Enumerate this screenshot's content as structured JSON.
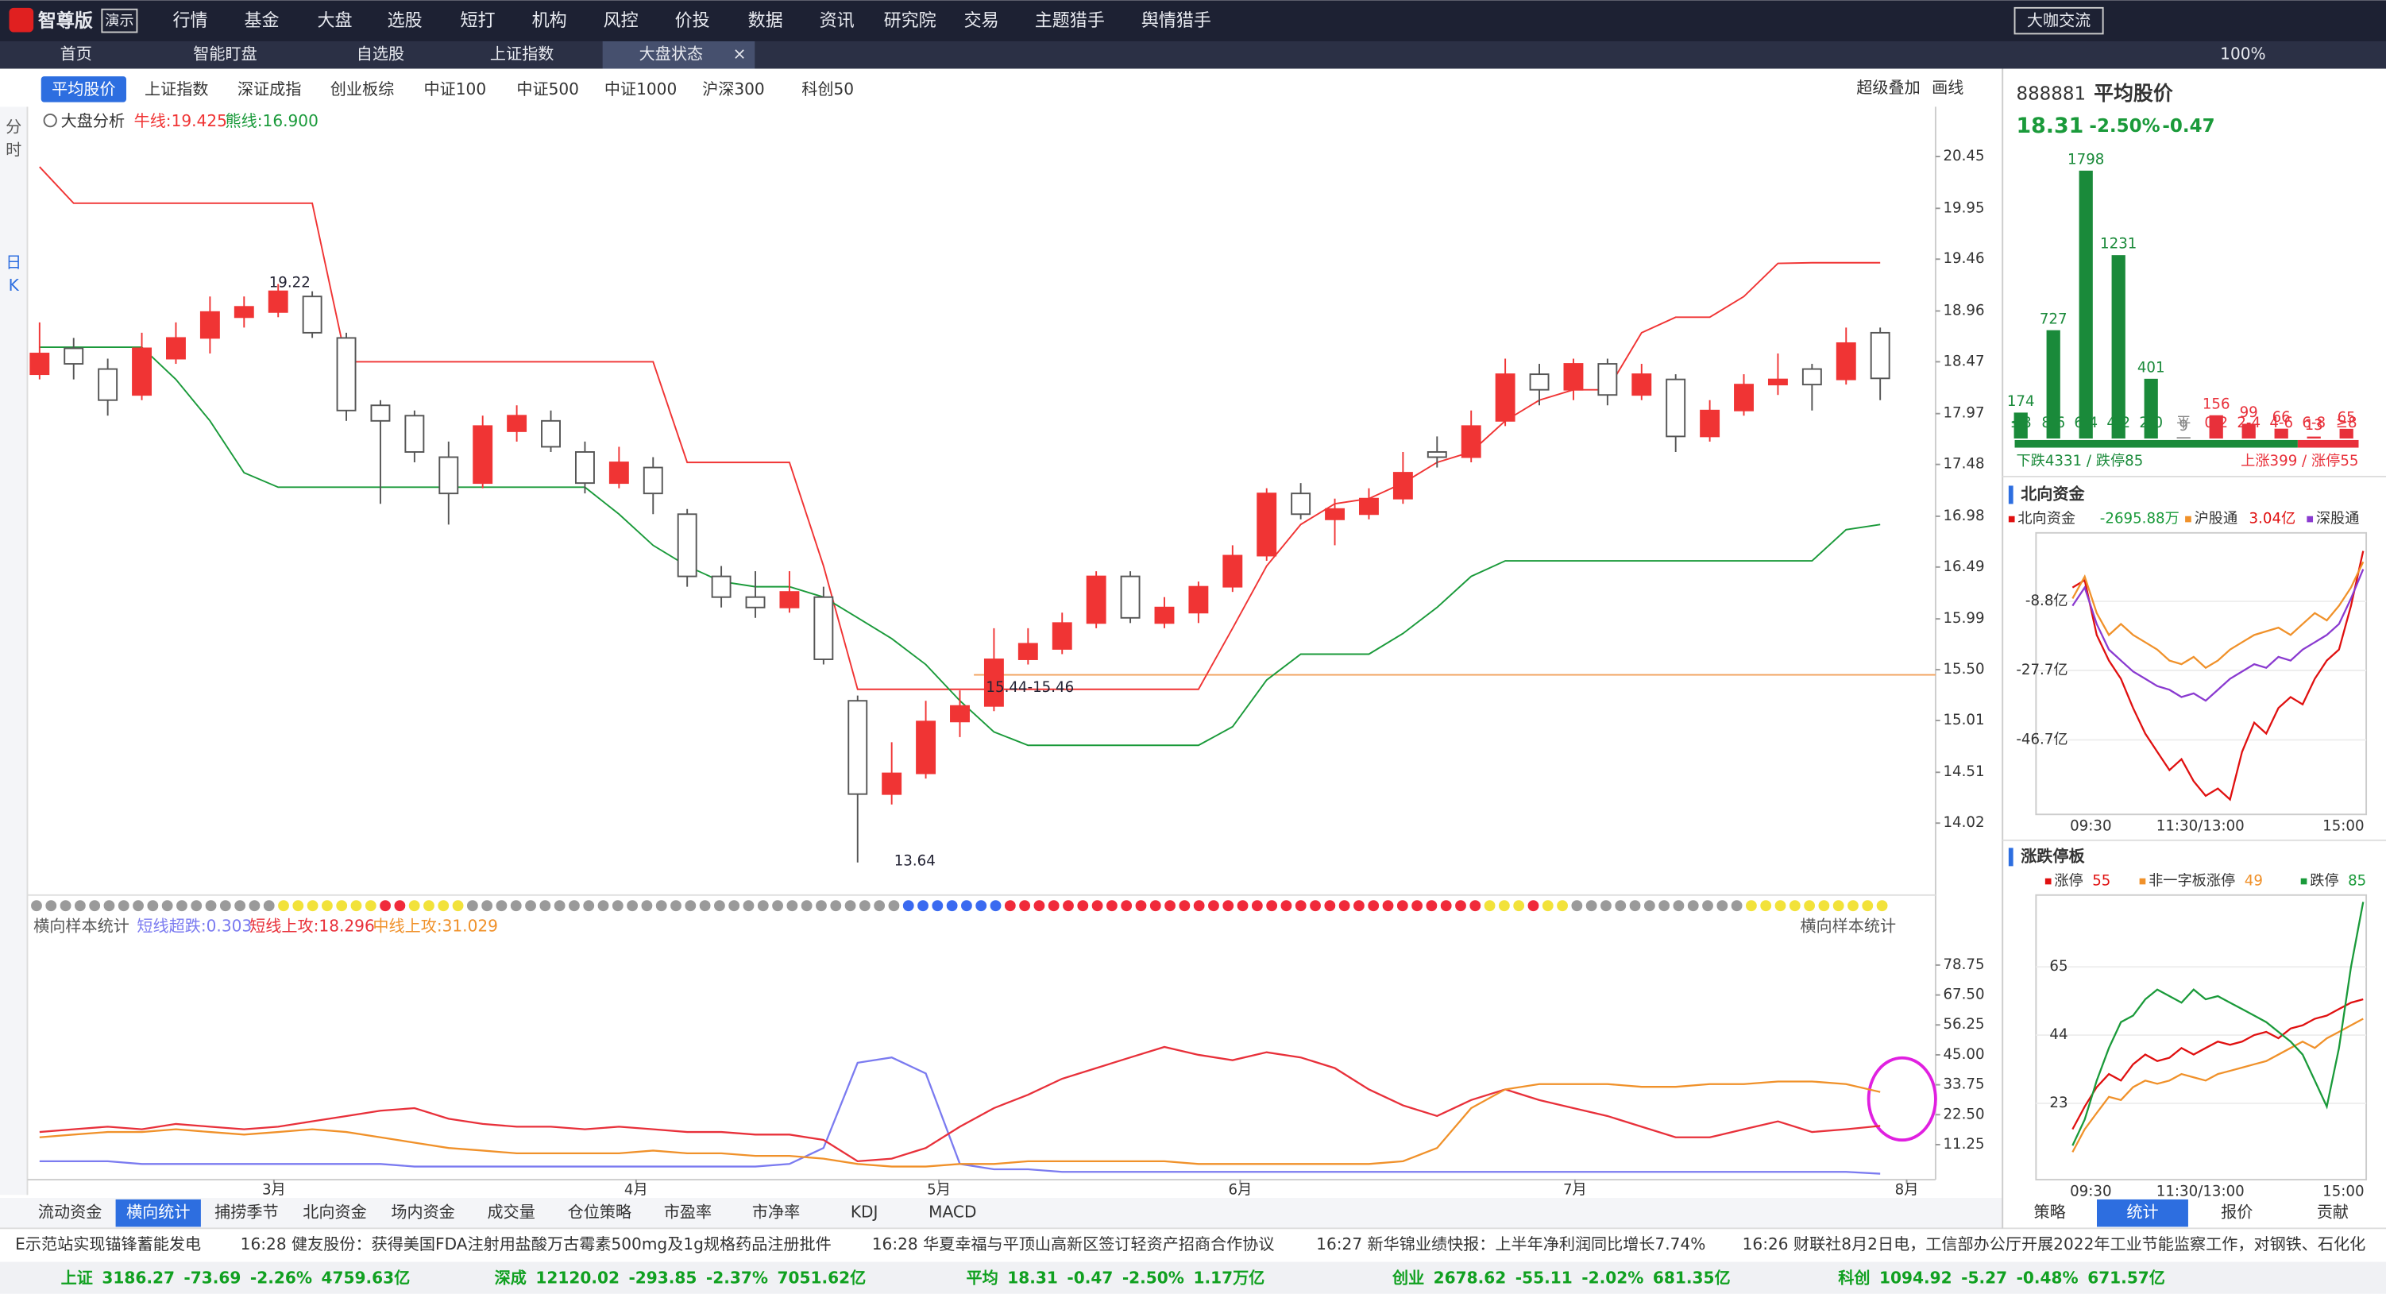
{
  "ui": {
    "logo": "智尊版",
    "logo_badge": "演示",
    "menu": [
      "行情",
      "基金",
      "大盘",
      "选股",
      "短打",
      "机构",
      "风控",
      "价投",
      "数据",
      "资讯",
      "研究院",
      "交易",
      "主题猎手",
      "舆情猎手"
    ],
    "top_right": "大咖交流",
    "zoom": "100%",
    "tabs": [
      "首页",
      "智能盯盘",
      "自选股",
      "上证指数",
      "大盘状态"
    ],
    "index_tabs": [
      "平均股价",
      "上证指数",
      "深证成指",
      "创业板综",
      "中证100",
      "中证500",
      "中证1000",
      "沪深300",
      "科创50"
    ],
    "overlay": "超级叠加",
    "draw_tool": "画线",
    "side": [
      "分",
      "时",
      "日",
      "K"
    ],
    "analysis": "大盘分析",
    "bull": "牛线:19.425",
    "bear": "熊线:16.900",
    "lower_title": "横向样本统计",
    "lower_right": "横向样本统计",
    "bottom_tabs": [
      "流动资金",
      "横向统计",
      "捕捞季节",
      "北向资金",
      "场内资金",
      "成交量",
      "仓位策略",
      "市盈率",
      "市净率",
      "KDJ",
      "MACD"
    ],
    "news": [
      "E示范站实现锚锋蓄能发电",
      "16:28 健友股份：获得美国FDA注射用盐酸万古霉素500mg及1g规格药品注册批件",
      "16:28 华夏幸福与平顶山高新区签订轻资产招商合作协议",
      "16:27 新华锦业绩快报：上半年净利润同比增长7.74%",
      "16:26 财联社8月2日电，工信部办公厅开展2022年工业节能监察工作，对钢铁、石化化"
    ],
    "status": [
      [
        "上证",
        "3186.27",
        "-73.69",
        "-2.26%",
        "4759.63亿"
      ],
      [
        "深成",
        "12120.02",
        "-293.85",
        "-2.37%",
        "7051.62亿"
      ],
      [
        "平均",
        "18.31",
        "-0.47",
        "-2.50%",
        "1.17万亿"
      ],
      [
        "创业",
        "2678.62",
        "-55.11",
        "-2.02%",
        "681.35亿"
      ],
      [
        "科创",
        "1094.92",
        "-5.27",
        "-0.48%",
        "671.57亿"
      ]
    ],
    "month_labels": [
      "3月",
      "4月",
      "5月",
      "6月",
      "7月",
      "8月"
    ],
    "annotations": [
      "19.22",
      "13.64",
      "15.44-15.46"
    ],
    "stock_code": "888881",
    "stock_name": "平均股价",
    "price": "18.31",
    "pct": "-2.50%",
    "chg": "-0.47",
    "fall": "下跌4331 / 跌停85",
    "rise": "上涨399 / 涨停55",
    "north_title": "北向资金",
    "north_values": [
      "-2695.88万",
      "3.04亿"
    ],
    "limit_title": "涨跌停板",
    "time_labels": [
      "09:30",
      "11:30/13:00",
      "15:00"
    ],
    "right_tabs": [
      "策略",
      "统计",
      "报价",
      "贡献"
    ]
  },
  "chart_data": [
    {
      "type": "candlestick",
      "ylim": [
        13.37,
        20.93
      ],
      "yticks": [
        20.45,
        19.95,
        19.46,
        18.96,
        18.47,
        17.97,
        17.48,
        16.98,
        16.49,
        15.99,
        {
          "value": 15.5,
          "label": "15.50"
        },
        15.01,
        14.51,
        14.02
      ],
      "up_color": "#f03434",
      "down_color": "#555555",
      "support_line": 15.45,
      "support_color": "#f2a25c",
      "candles": [
        [
          18.35,
          18.85,
          18.3,
          18.55
        ],
        [
          18.6,
          18.7,
          18.3,
          18.45
        ],
        [
          18.4,
          18.5,
          17.95,
          18.1
        ],
        [
          18.15,
          18.75,
          18.1,
          18.6
        ],
        [
          18.5,
          18.85,
          18.45,
          18.7
        ],
        [
          18.7,
          19.1,
          18.55,
          18.95
        ],
        [
          18.9,
          19.1,
          18.8,
          19.0
        ],
        [
          18.95,
          19.22,
          18.9,
          19.15
        ],
        [
          19.1,
          19.15,
          18.7,
          18.75
        ],
        [
          18.7,
          18.75,
          17.9,
          18.0
        ],
        [
          18.05,
          18.1,
          17.1,
          17.9
        ],
        [
          17.95,
          18.0,
          17.5,
          17.6
        ],
        [
          17.55,
          17.7,
          16.9,
          17.2
        ],
        [
          17.3,
          17.95,
          17.25,
          17.85
        ],
        [
          17.8,
          18.05,
          17.7,
          17.95
        ],
        [
          17.9,
          18.0,
          17.6,
          17.65
        ],
        [
          17.6,
          17.7,
          17.2,
          17.3
        ],
        [
          17.3,
          17.65,
          17.25,
          17.5
        ],
        [
          17.45,
          17.55,
          17.0,
          17.2
        ],
        [
          17.0,
          17.05,
          16.3,
          16.4
        ],
        [
          16.4,
          16.5,
          16.1,
          16.2
        ],
        [
          16.2,
          16.45,
          16.0,
          16.1
        ],
        [
          16.1,
          16.45,
          16.05,
          16.25
        ],
        [
          16.2,
          16.3,
          15.55,
          15.6
        ],
        [
          15.2,
          15.25,
          13.64,
          14.3
        ],
        [
          14.3,
          14.8,
          14.2,
          14.5
        ],
        [
          14.5,
          15.2,
          14.45,
          15.0
        ],
        [
          15.0,
          15.3,
          14.85,
          15.15
        ],
        [
          15.15,
          15.9,
          15.1,
          15.6
        ],
        [
          15.6,
          15.9,
          15.55,
          15.75
        ],
        [
          15.7,
          16.05,
          15.65,
          15.95
        ],
        [
          15.95,
          16.45,
          15.9,
          16.4
        ],
        [
          16.4,
          16.45,
          15.95,
          16.0
        ],
        [
          15.95,
          16.2,
          15.9,
          16.1
        ],
        [
          16.05,
          16.35,
          15.95,
          16.3
        ],
        [
          16.3,
          16.7,
          16.25,
          16.6
        ],
        [
          16.6,
          17.25,
          16.55,
          17.2
        ],
        [
          17.2,
          17.3,
          16.95,
          17.0
        ],
        [
          16.95,
          17.15,
          16.7,
          17.05
        ],
        [
          17.0,
          17.25,
          16.95,
          17.15
        ],
        [
          17.15,
          17.6,
          17.1,
          17.4
        ],
        [
          17.6,
          17.75,
          17.45,
          17.55
        ],
        [
          17.55,
          18.0,
          17.5,
          17.85
        ],
        [
          17.9,
          18.5,
          17.85,
          18.35
        ],
        [
          18.35,
          18.45,
          18.05,
          18.2
        ],
        [
          18.2,
          18.5,
          18.1,
          18.45
        ],
        [
          18.45,
          18.5,
          18.05,
          18.15
        ],
        [
          18.15,
          18.45,
          18.1,
          18.35
        ],
        [
          18.3,
          18.35,
          17.6,
          17.75
        ],
        [
          17.75,
          18.1,
          17.7,
          18.0
        ],
        [
          18.0,
          18.35,
          17.95,
          18.25
        ],
        [
          18.25,
          18.55,
          18.15,
          18.3
        ],
        [
          18.4,
          18.45,
          18.0,
          18.25
        ],
        [
          18.3,
          18.8,
          18.25,
          18.65
        ],
        [
          18.75,
          18.8,
          18.1,
          18.31
        ]
      ],
      "series": [
        {
          "name": "牛线",
          "color": "#f03434",
          "values": [
            20.35,
            20.0,
            20.0,
            20.0,
            20.0,
            20.0,
            20.0,
            20.0,
            20.0,
            18.47,
            18.47,
            18.47,
            18.47,
            18.47,
            18.47,
            18.47,
            18.47,
            18.47,
            18.47,
            17.5,
            17.5,
            17.5,
            17.5,
            16.5,
            15.31,
            15.31,
            15.31,
            15.31,
            15.31,
            15.31,
            15.31,
            15.31,
            15.31,
            15.31,
            15.31,
            15.9,
            16.5,
            16.9,
            17.1,
            17.15,
            17.3,
            17.5,
            17.6,
            17.9,
            18.1,
            18.2,
            18.2,
            18.75,
            18.9,
            18.9,
            19.1,
            19.42,
            19.425,
            19.425,
            19.425
          ]
        },
        {
          "name": "熊线",
          "color": "#1a9a3a",
          "values": [
            18.61,
            18.61,
            18.61,
            18.61,
            18.3,
            17.9,
            17.4,
            17.26,
            17.26,
            17.26,
            17.26,
            17.26,
            17.26,
            17.26,
            17.26,
            17.26,
            17.26,
            17.0,
            16.7,
            16.5,
            16.35,
            16.3,
            16.3,
            16.2,
            16.0,
            15.8,
            15.55,
            15.2,
            14.9,
            14.77,
            14.77,
            14.77,
            14.77,
            14.77,
            14.77,
            14.95,
            15.4,
            15.65,
            15.65,
            15.65,
            15.85,
            16.1,
            16.4,
            16.55,
            16.55,
            16.55,
            16.55,
            16.55,
            16.55,
            16.55,
            16.55,
            16.55,
            16.55,
            16.85,
            16.9
          ]
        }
      ]
    },
    {
      "type": "line",
      "ylim": [
        -1.91,
        86.76
      ],
      "yticks": [
        78.75,
        {
          "value": 67.5,
          "label": "67.50"
        },
        56.25,
        {
          "value": 45,
          "label": "45.00"
        },
        33.75,
        {
          "value": 22.5,
          "label": "22.50"
        },
        11.25
      ],
      "series": [
        {
          "name": "短线超跌:0.303",
          "color": "#7b7bf0",
          "values": [
            5,
            5,
            5,
            4,
            4,
            4,
            4,
            4,
            4,
            4,
            4,
            3,
            3,
            3,
            3,
            3,
            3,
            3,
            3,
            3,
            3,
            3,
            4,
            10,
            42,
            44,
            38,
            4,
            2,
            2,
            1,
            1,
            1,
            1,
            1,
            1,
            1,
            1,
            1,
            1,
            1,
            1,
            1,
            1,
            1,
            1,
            1,
            1,
            1,
            1,
            1,
            1,
            1,
            1,
            0.303
          ]
        },
        {
          "name": "短线上攻:18.296",
          "color": "#e8303a",
          "values": [
            16,
            17,
            18,
            17,
            19,
            18,
            17,
            18,
            20,
            22,
            24,
            25,
            21,
            19,
            18,
            18,
            17,
            18,
            17,
            16,
            16,
            15,
            15,
            13,
            5,
            6,
            10,
            18,
            25,
            30,
            36,
            40,
            44,
            48,
            45,
            43,
            46,
            44,
            40,
            32,
            26,
            22,
            28,
            32,
            28,
            25,
            22,
            18,
            14,
            14,
            17,
            20,
            16,
            17,
            18.296
          ]
        },
        {
          "name": "中线上攻:31.029",
          "color": "#f0912a",
          "values": [
            14,
            15,
            16,
            16,
            17,
            16,
            15,
            16,
            17,
            16,
            14,
            12,
            10,
            9,
            8,
            8,
            8,
            8,
            9,
            8,
            8,
            7,
            7,
            6,
            4,
            3,
            3,
            4,
            4,
            5,
            5,
            5,
            5,
            5,
            4,
            4,
            4,
            4,
            4,
            4,
            5,
            10,
            25,
            32,
            34,
            34,
            34,
            33,
            33,
            34,
            34,
            35,
            35,
            34,
            31.029
          ]
        }
      ]
    },
    {
      "type": "bar",
      "ylim": [
        0,
        1900
      ],
      "categories": [
        "≤8",
        "8-6",
        "6-4",
        "4-2",
        "2-0",
        "平",
        "0-2",
        "2-4",
        "4-6",
        "6-8",
        "≥8"
      ],
      "values": [
        174,
        727,
        1798,
        1231,
        401,
        9,
        156,
        99,
        66,
        13,
        65
      ],
      "colors": [
        "#1a8a3a",
        "#1a8a3a",
        "#1a8a3a",
        "#1a8a3a",
        "#1a8a3a",
        "#888888",
        "#e8303a",
        "#e8303a",
        "#e8303a",
        "#e8303a",
        "#e8303a"
      ]
    },
    {
      "type": "line",
      "ylim": [
        -67.1,
        9.95
      ],
      "yticks": [
        {
          "value": -8.8,
          "label": "-8.8亿"
        },
        {
          "value": -27.7,
          "label": "-27.7亿"
        },
        {
          "value": -46.7,
          "label": "-46.7亿"
        }
      ],
      "series": [
        {
          "name": "北向资金",
          "color": "#e01010",
          "values": [
            -5,
            -3,
            -18,
            -25,
            -30,
            -38,
            -45,
            -50,
            -55,
            -52,
            -58,
            -62,
            -60,
            -63,
            -50,
            -42,
            -45,
            -38,
            -35,
            -37,
            -30,
            -25,
            -22,
            -10,
            5
          ]
        },
        {
          "name": "沪股通",
          "color": "#f0912a",
          "values": [
            -8,
            -2,
            -12,
            -18,
            -15,
            -18,
            -20,
            -22,
            -25,
            -26,
            -24,
            -27,
            -25,
            -22,
            -20,
            -18,
            -17,
            -16,
            -18,
            -15,
            -12,
            -14,
            -10,
            -5,
            2
          ]
        },
        {
          "name": "深股通",
          "color": "#8a3ad0",
          "values": [
            -10,
            -5,
            -15,
            -22,
            -25,
            -28,
            -30,
            -32,
            -33,
            -35,
            -34,
            -36,
            -33,
            -30,
            -28,
            -26,
            -27,
            -24,
            -25,
            -22,
            -20,
            -18,
            -15,
            -8,
            0
          ]
        }
      ]
    },
    {
      "type": "line",
      "ylim": [
        -0.5,
        87.1
      ],
      "yticks": [
        65,
        44,
        23
      ],
      "series": [
        {
          "name": "涨停",
          "label_value": 55,
          "color": "#e01010",
          "values": [
            15,
            22,
            28,
            32,
            30,
            35,
            38,
            36,
            37,
            40,
            38,
            40,
            42,
            41,
            42,
            44,
            45,
            43,
            46,
            47,
            49,
            50,
            52,
            54,
            55
          ]
        },
        {
          "name": "非一字板涨停",
          "label_value": 49,
          "color": "#f0912a",
          "values": [
            8,
            15,
            20,
            25,
            24,
            28,
            30,
            29,
            30,
            32,
            31,
            30,
            32,
            33,
            34,
            35,
            36,
            38,
            40,
            42,
            40,
            43,
            45,
            47,
            49
          ]
        },
        {
          "name": "跌停",
          "label_value": 85,
          "color": "#1a9a3a",
          "values": [
            10,
            18,
            30,
            40,
            48,
            50,
            55,
            58,
            56,
            54,
            58,
            55,
            56,
            54,
            52,
            50,
            48,
            45,
            42,
            38,
            30,
            22,
            40,
            65,
            85
          ]
        }
      ]
    }
  ]
}
